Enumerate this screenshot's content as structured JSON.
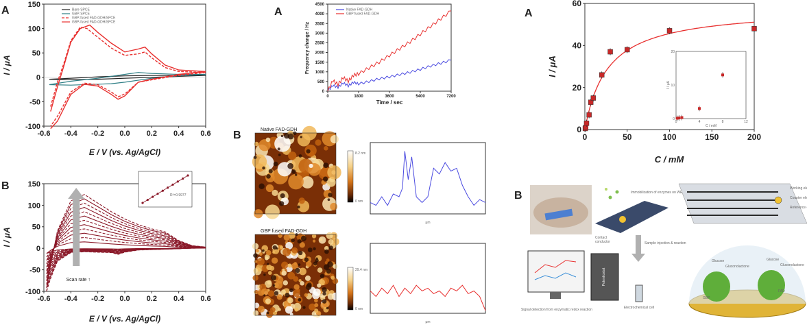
{
  "figure": {
    "letters": {
      "p1A": "A",
      "p1B": "B",
      "p2A": "A",
      "p2B": "B",
      "p3A": "A",
      "p3B": "B"
    },
    "afm": {
      "native_label": "Native FAD-GDH",
      "fused_label": "GBP fused FAD-GDH",
      "colorbar_native_top": "8.2 nm",
      "colorbar_fused_top": "29.4 nm",
      "colorbar_bottom": "0 nm"
    },
    "schematic": {
      "immobilization": "Immobilization of enzymes on WE",
      "working": "Working electrode (WE)",
      "counter": "Counter electrode (CE)",
      "reference": "Reference electrode (RE)",
      "contact": "Contact",
      "conductor": "conductor",
      "sample_injection": "Sample injection & reaction",
      "potentiostat": "Potentiostat",
      "cell": "Electrochemical cell",
      "signal": "Signal detection from enzymatic redox reaction",
      "glucose1": "Glucose",
      "gluconolactone1": "Gluconolactone",
      "glucose2": "Glucose",
      "gluconolactone2": "Gluconolactone",
      "gbp": "GBP",
      "fad": "FAD"
    },
    "colors": {
      "red": "#e8302f",
      "teal": "#2f7f86",
      "blue": "#4a4ae0",
      "dark": "#222222",
      "maroon": "#8b1a2a",
      "gray_arrow": "#b0b0b0"
    }
  },
  "chart_data": [
    {
      "id": "cv_A",
      "type": "line",
      "xlabel": "E / V (vs. Ag/AgCl)",
      "ylabel": "I / μA",
      "xlim": [
        -0.6,
        0.6
      ],
      "ylim": [
        -100,
        150
      ],
      "xticks": [
        "-0.6",
        "-0.4",
        "-0.2",
        "0.0",
        "0.2",
        "0.4",
        "0.6"
      ],
      "yticks": [
        "-100",
        "-50",
        "0",
        "50",
        "100",
        "150"
      ],
      "legend_position": "top-left",
      "series": [
        {
          "name": "Bare-SPCE",
          "color": "#222222",
          "dash": "none",
          "x": [
            -0.56,
            -0.4,
            -0.2,
            0.0,
            0.2,
            0.4,
            0.6,
            0.4,
            0.2,
            0.0,
            -0.2,
            -0.4,
            -0.56
          ],
          "y": [
            -4,
            -2,
            1,
            3,
            4,
            4,
            4,
            2,
            0,
            -2,
            -4,
            -5,
            -4
          ]
        },
        {
          "name": "GBP-SPCE",
          "color": "#2f7f86",
          "dash": "none",
          "x": [
            -0.56,
            -0.4,
            -0.2,
            0.0,
            0.1,
            0.2,
            0.4,
            0.6,
            0.4,
            0.2,
            0.0,
            -0.1,
            -0.2,
            -0.4,
            -0.56
          ],
          "y": [
            -15,
            -8,
            -2,
            6,
            10,
            8,
            6,
            6,
            3,
            -2,
            -10,
            -13,
            -14,
            -16,
            -15
          ]
        },
        {
          "name": "GBP-fused FAD-GDH/SPCE",
          "color": "#e8302f",
          "dash": "4,2",
          "x": [
            -0.55,
            -0.5,
            -0.45,
            -0.4,
            -0.33,
            -0.28,
            -0.2,
            -0.1,
            0.0,
            0.1,
            0.15,
            0.2,
            0.3,
            0.4,
            0.6,
            0.4,
            0.2,
            0.1,
            0.0,
            -0.05,
            -0.1,
            -0.2,
            -0.3,
            -0.4,
            -0.5,
            -0.55
          ],
          "y": [
            -60,
            -10,
            30,
            75,
            103,
            100,
            82,
            60,
            45,
            48,
            52,
            40,
            20,
            12,
            10,
            4,
            -5,
            -10,
            -34,
            -40,
            -30,
            -15,
            -12,
            -30,
            -80,
            -100
          ]
        },
        {
          "name": "GBP-fused FAD-GDH/SPCE",
          "color": "#e8302f",
          "dash": "none",
          "x": [
            -0.55,
            -0.5,
            -0.45,
            -0.4,
            -0.33,
            -0.26,
            -0.2,
            -0.1,
            0.0,
            0.1,
            0.15,
            0.2,
            0.3,
            0.4,
            0.6,
            0.4,
            0.2,
            0.1,
            0.0,
            -0.05,
            -0.1,
            -0.2,
            -0.3,
            -0.4,
            -0.5,
            -0.55
          ],
          "y": [
            -70,
            -20,
            25,
            72,
            100,
            107,
            92,
            70,
            52,
            58,
            62,
            48,
            25,
            15,
            12,
            6,
            -4,
            -10,
            -38,
            -45,
            -35,
            -18,
            -14,
            -35,
            -90,
            -105
          ]
        }
      ]
    },
    {
      "id": "cv_B",
      "type": "line",
      "xlabel": "E / V (vs. Ag/AgCl)",
      "ylabel": "I / μA",
      "xlim": [
        -0.6,
        0.6
      ],
      "ylim": [
        -100,
        150
      ],
      "xticks": [
        "-0.6",
        "-0.4",
        "-0.2",
        "0.0",
        "0.2",
        "0.4",
        "0.6"
      ],
      "yticks": [
        "-100",
        "-50",
        "0",
        "50",
        "100",
        "150"
      ],
      "annotation": "Scan rate ↑",
      "scale_factors": [
        0.12,
        0.2,
        0.28,
        0.36,
        0.44,
        0.52,
        0.6,
        0.68,
        0.76,
        0.84,
        0.92,
        1.0
      ],
      "inset": {
        "type": "scatter",
        "x": [
          1,
          2,
          3,
          4,
          5,
          6,
          7,
          8,
          9,
          10
        ],
        "y": [
          1,
          2,
          3,
          4,
          5,
          6,
          7,
          8,
          9,
          10
        ],
        "r2": "R²=0.9977"
      }
    },
    {
      "id": "freq_A",
      "type": "line",
      "xlabel": "Time / sec",
      "ylabel": "Frequency change / Hz",
      "xlim": [
        0,
        7200
      ],
      "ylim": [
        0,
        4500
      ],
      "xticks": [
        "0",
        "1800",
        "3600",
        "5400",
        "7200"
      ],
      "yticks": [
        "0",
        "500",
        "1000",
        "1500",
        "2000",
        "2500",
        "3000",
        "3500",
        "4000",
        "4500"
      ],
      "legend_position": "top-left",
      "series": [
        {
          "name": "Native FAD-GDH",
          "color": "#4a4ae0",
          "x": [
            0,
            300,
            600,
            900,
            1200,
            1500,
            1800,
            2400,
            3000,
            3600,
            4200,
            4800,
            5400,
            6000,
            6600,
            7200
          ],
          "y": [
            0,
            300,
            200,
            420,
            280,
            460,
            380,
            500,
            640,
            740,
            860,
            980,
            1130,
            1300,
            1450,
            1600
          ]
        },
        {
          "name": "GBP fused FAD-GDH",
          "color": "#e8302f",
          "x": [
            0,
            300,
            600,
            900,
            1200,
            1500,
            1800,
            2400,
            3000,
            3600,
            4200,
            4800,
            5400,
            6000,
            6600,
            7200
          ],
          "y": [
            0,
            550,
            350,
            700,
            520,
            820,
            900,
            1200,
            1500,
            1850,
            2200,
            2550,
            2950,
            3350,
            3750,
            4150
          ]
        }
      ]
    },
    {
      "id": "afm_profiles",
      "type": "line",
      "xlabel": "μm",
      "series": [
        {
          "name": "Native FAD-GDH profile",
          "color": "#4a4ae0",
          "x": [
            0,
            0.05,
            0.1,
            0.15,
            0.2,
            0.25,
            0.28,
            0.3,
            0.33,
            0.36,
            0.4,
            0.45,
            0.5,
            0.55,
            0.6,
            0.65,
            0.7,
            0.75,
            0.8,
            0.85,
            0.9,
            0.95,
            1.0
          ],
          "y": [
            4,
            3,
            6,
            3,
            7,
            6,
            9,
            22,
            12,
            20,
            6,
            4,
            6,
            16,
            14,
            18,
            15,
            16,
            10,
            6,
            3,
            5,
            4
          ]
        },
        {
          "name": "GBP fused FAD-GDH profile",
          "color": "#e8302f",
          "x": [
            0,
            0.05,
            0.1,
            0.15,
            0.2,
            0.25,
            0.3,
            0.35,
            0.4,
            0.45,
            0.5,
            0.55,
            0.6,
            0.65,
            0.7,
            0.75,
            0.8,
            0.85,
            0.9,
            0.95,
            1.0
          ],
          "y": [
            8,
            6,
            9,
            7,
            10,
            6,
            9,
            7,
            10,
            8,
            9,
            7,
            8,
            6,
            9,
            8,
            10,
            7,
            8,
            6,
            1
          ]
        }
      ]
    },
    {
      "id": "kinetic_A",
      "type": "scatter",
      "xlabel": "C / mM",
      "ylabel": "I / μA",
      "xlim": [
        0,
        200
      ],
      "ylim": [
        0,
        60
      ],
      "xticks": [
        "0",
        "50",
        "100",
        "150",
        "200"
      ],
      "yticks": [
        "0",
        "20",
        "40",
        "60"
      ],
      "x": [
        0.5,
        1,
        2,
        5,
        7,
        10,
        20,
        30,
        50,
        100,
        200
      ],
      "y": [
        0.5,
        1,
        3,
        7,
        13,
        15,
        26,
        37,
        38,
        47,
        48
      ],
      "fit": {
        "vmax": 58,
        "km": 27
      },
      "inset": {
        "xlabel": "C / mM",
        "ylabel": "I / μA",
        "xticks": [
          "0",
          "4",
          "8",
          "12"
        ],
        "yticks": [
          "0",
          "10",
          "20"
        ],
        "x": [
          0.2,
          0.5,
          1,
          4,
          8
        ],
        "y": [
          0.1,
          0.2,
          0.3,
          3,
          13
        ]
      }
    }
  ]
}
